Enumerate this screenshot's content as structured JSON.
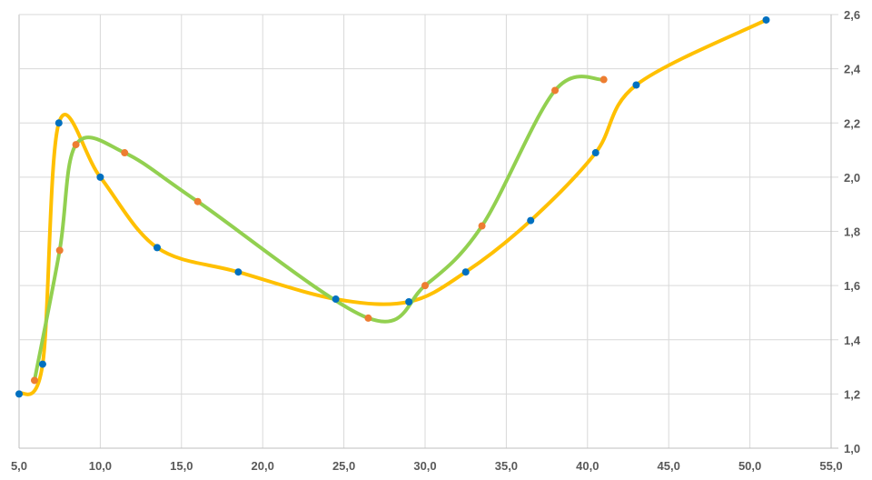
{
  "chart_data": {
    "type": "scatter",
    "title": "",
    "xlabel": "",
    "ylabel": "",
    "xlim": [
      5,
      55
    ],
    "ylim": [
      1.0,
      2.6
    ],
    "x_ticks": [
      "5,0",
      "10,0",
      "15,0",
      "20,0",
      "25,0",
      "30,0",
      "35,0",
      "40,0",
      "45,0",
      "50,0",
      "55,0"
    ],
    "y_ticks": [
      "1,0",
      "1,2",
      "1,4",
      "1,6",
      "1,8",
      "2,0",
      "2,2",
      "2,4",
      "2,6"
    ],
    "y_axis_position": "right",
    "grid": true,
    "smoothed_lines": true,
    "series": [
      {
        "line_color": "#FFC000",
        "marker_color": "#0070C0",
        "points": [
          [
            5.0,
            1.2
          ],
          [
            6.45,
            1.31
          ],
          [
            7.45,
            2.2
          ],
          [
            10.0,
            2.0
          ],
          [
            13.5,
            1.74
          ],
          [
            18.5,
            1.65
          ],
          [
            24.5,
            1.55
          ],
          [
            29.0,
            1.54
          ],
          [
            32.5,
            1.65
          ],
          [
            36.5,
            1.84
          ],
          [
            40.5,
            2.09
          ],
          [
            43.0,
            2.34
          ],
          [
            51.0,
            2.58
          ]
        ]
      },
      {
        "line_color": "#92D050",
        "marker_color": "#ED7D31",
        "points": [
          [
            5.95,
            1.25
          ],
          [
            7.5,
            1.73
          ],
          [
            8.5,
            2.12
          ],
          [
            11.5,
            2.09
          ],
          [
            16.0,
            1.91
          ],
          [
            26.5,
            1.48
          ],
          [
            30.0,
            1.6
          ],
          [
            33.5,
            1.82
          ],
          [
            38.0,
            2.32
          ],
          [
            41.0,
            2.36
          ]
        ]
      }
    ]
  }
}
